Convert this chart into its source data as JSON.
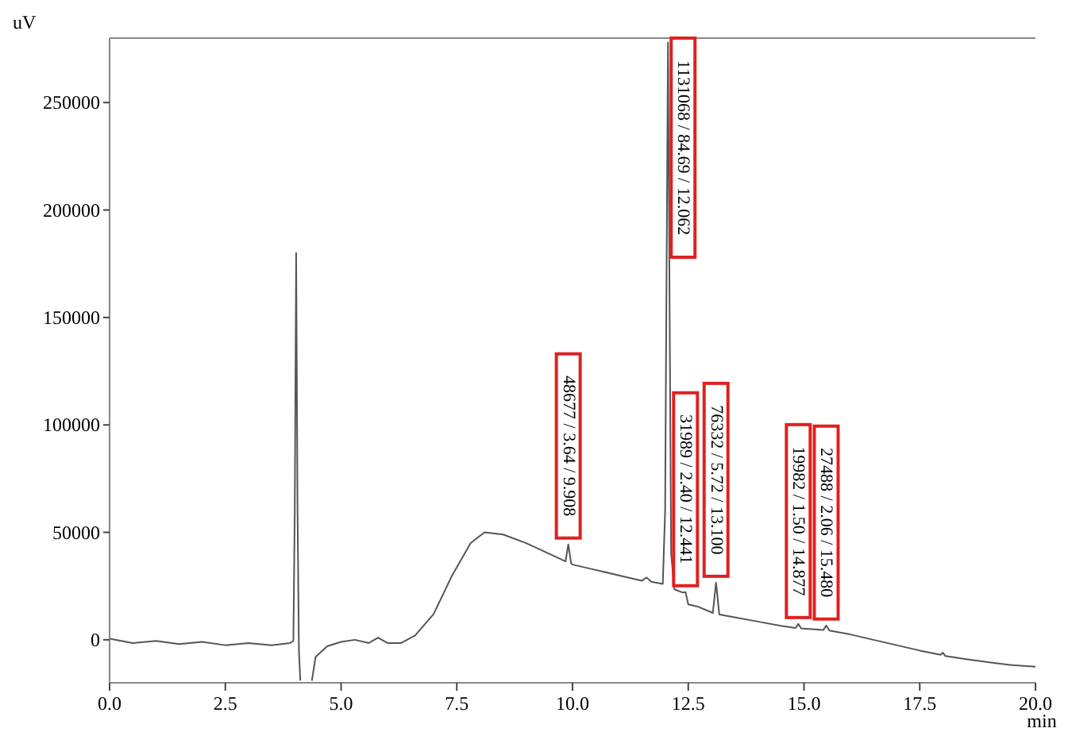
{
  "chart_data": {
    "type": "line",
    "xlabel": "min",
    "ylabel": "uV",
    "xlim": [
      0,
      20
    ],
    "ylim": [
      -20000,
      280000
    ],
    "xticks": [
      {
        "value": 0,
        "label": "0.0"
      },
      {
        "value": 2.5,
        "label": "2.5"
      },
      {
        "value": 5,
        "label": "5.0"
      },
      {
        "value": 7.5,
        "label": "7.5"
      },
      {
        "value": 10,
        "label": "10.0"
      },
      {
        "value": 12.5,
        "label": "12.5"
      },
      {
        "value": 15,
        "label": "15.0"
      },
      {
        "value": 17.5,
        "label": "17.5"
      },
      {
        "value": 20,
        "label": "20.0"
      }
    ],
    "yticks": [
      0,
      50000,
      100000,
      150000,
      200000,
      250000
    ],
    "grid": false,
    "marker": "none",
    "line_style": "solid",
    "series": [
      {
        "color": "#555555",
        "x": [
          0,
          0.5,
          1,
          1.5,
          2,
          2.5,
          3,
          3.5,
          3.9,
          3.97,
          4.0,
          4.03,
          4.06,
          4.09,
          4.12,
          4.2,
          4.37,
          4.45,
          4.7,
          5.0,
          5.3,
          5.6,
          5.8,
          6.0,
          6.3,
          6.6,
          7.0,
          7.4,
          7.8,
          8.1,
          8.5,
          9.0,
          9.5,
          9.85,
          9.908,
          9.97,
          10.0,
          10.5,
          11.0,
          11.5,
          11.6,
          11.7,
          11.95,
          12.0,
          12.062,
          12.13,
          12.2,
          12.38,
          12.441,
          12.5,
          12.7,
          13.03,
          13.1,
          13.17,
          13.5,
          14.0,
          14.5,
          14.82,
          14.877,
          14.94,
          15.42,
          15.48,
          15.55,
          16.0,
          16.5,
          17.0,
          17.5,
          17.95,
          18.0,
          18.05,
          18.5,
          19.0,
          19.5,
          20.0
        ],
        "values": [
          500,
          -1500,
          -500,
          -2000,
          -1000,
          -2500,
          -1500,
          -2500,
          -1500,
          -500,
          60000,
          180000,
          60000,
          -5000,
          -19000,
          null,
          -19000,
          -8000,
          -3000,
          -1000,
          0,
          -1500,
          1000,
          -1500,
          -1500,
          2000,
          12000,
          30000,
          45000,
          50000,
          49000,
          45000,
          40000,
          36500,
          44400,
          35500,
          35000,
          32500,
          30000,
          27500,
          29000,
          27000,
          26000,
          60000,
          278000,
          40000,
          23500,
          22000,
          22200,
          16500,
          15500,
          12500,
          26600,
          11800,
          10500,
          8500,
          6500,
          5500,
          7400,
          5300,
          4600,
          6700,
          4300,
          2500,
          0,
          -2500,
          -5000,
          -7000,
          -6000,
          -7500,
          -9000,
          -10500,
          -11800,
          -12500
        ]
      }
    ],
    "annotations": [
      {
        "text": "48677 / 3.64 / 9.908",
        "x": 9.908,
        "y": 44400
      },
      {
        "text": "1131068 / 84.69 / 12.062",
        "x": 12.062,
        "y": 278000
      },
      {
        "text": "31989 / 2.40 / 12.441",
        "x": 12.441,
        "y": 22200
      },
      {
        "text": "76332 / 5.72 / 13.100",
        "x": 13.1,
        "y": 26600
      },
      {
        "text": "19982 / 1.50 / 14.877",
        "x": 14.877,
        "y": 7400
      },
      {
        "text": "27488 / 2.06 / 15.480",
        "x": 15.48,
        "y": 6700
      }
    ]
  }
}
